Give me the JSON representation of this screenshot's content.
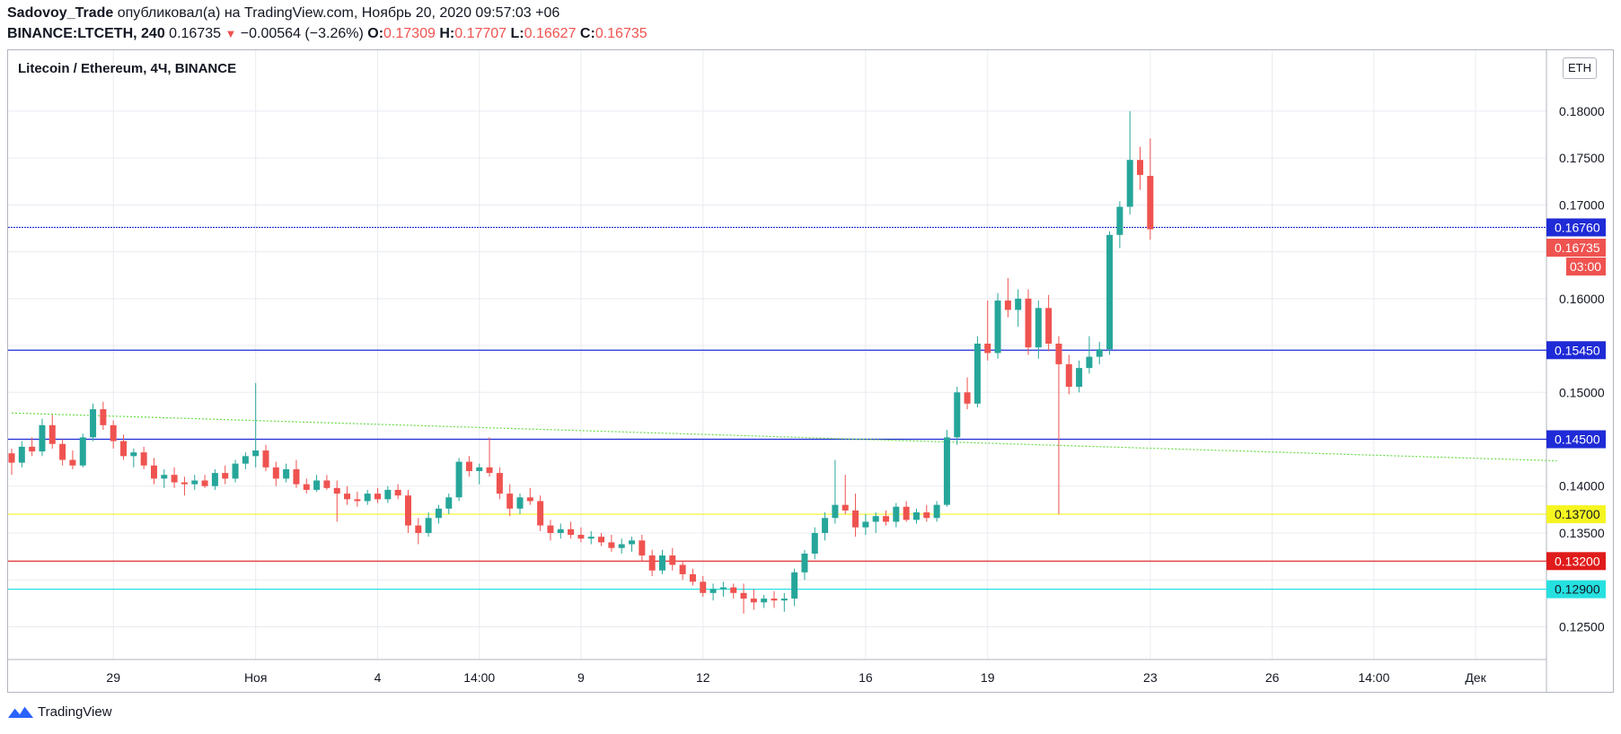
{
  "header": {
    "author": "Sadovoy_Trade",
    "published_text": "опубликовал(а) на TradingView.com, Ноябрь 20, 2020 09:57:03 +06",
    "symbol": "BINANCE:LTCETH, 240",
    "last": "0.16735",
    "change": "−0.00564 (−3.26%)",
    "o_label": "O:",
    "o_value": "0.17309",
    "h_label": "H:",
    "h_value": "0.17707",
    "l_label": "L:",
    "l_value": "0.16627",
    "c_label": "C:",
    "c_value": "0.16735"
  },
  "chart_title": "Litecoin / Ethereum, 4Ч, BINANCE",
  "currency_badge": "ETH",
  "footer": {
    "brand": "TradingView"
  },
  "colors": {
    "up": "#26a69a",
    "down": "#ef5350",
    "grid": "#e8ebf0",
    "blue": "#1f2bd6",
    "yellow": "#f5f521",
    "red": "#e01b1b",
    "cyan": "#26e0e0",
    "trend": "#66dd44"
  },
  "chart_data": {
    "type": "candlestick",
    "ylim": [
      0.1215,
      0.1865
    ],
    "y_ticks": [
      "0.12500",
      "0.13500",
      "0.14000",
      "0.15000",
      "0.16000",
      "0.17000",
      "0.17500",
      "0.18000"
    ],
    "x_labels": [
      {
        "label": "29",
        "i": 10
      },
      {
        "label": "Ноя",
        "i": 24
      },
      {
        "label": "4",
        "i": 36
      },
      {
        "label": "14:00",
        "i": 46
      },
      {
        "label": "9",
        "i": 56
      },
      {
        "label": "12",
        "i": 68
      },
      {
        "label": "16",
        "i": 84
      },
      {
        "label": "19",
        "i": 96
      },
      {
        "label": "23",
        "i": 112
      },
      {
        "label": "26",
        "i": 124
      },
      {
        "label": "14:00",
        "i": 134
      },
      {
        "label": "Дек",
        "i": 144
      }
    ],
    "horizontal_levels": [
      {
        "price": 0.1676,
        "label": "0.16760",
        "color": "#1f2bd6",
        "dotted": true
      },
      {
        "price": 0.1545,
        "label": "0.15450",
        "color": "#1f2bd6"
      },
      {
        "price": 0.145,
        "label": "0.14500",
        "color": "#1f2bd6"
      },
      {
        "price": 0.137,
        "label": "0.13700",
        "color": "#f5f521"
      },
      {
        "price": 0.132,
        "label": "0.13200",
        "color": "#e01b1b"
      },
      {
        "price": 0.129,
        "label": "0.12900",
        "color": "#26e0e0"
      }
    ],
    "last_price": {
      "label": "0.16735",
      "timer": "03:00",
      "price": 0.16735
    },
    "trendline": {
      "from": [
        0,
        0.1478
      ],
      "to": [
        152,
        0.1427
      ]
    },
    "candles": [
      [
        0.1435,
        0.144,
        0.1412,
        0.1425
      ],
      [
        0.1425,
        0.1448,
        0.142,
        0.1442
      ],
      [
        0.1442,
        0.1452,
        0.1432,
        0.1437
      ],
      [
        0.1437,
        0.1472,
        0.1432,
        0.1465
      ],
      [
        0.1465,
        0.1476,
        0.144,
        0.1445
      ],
      [
        0.1445,
        0.145,
        0.1422,
        0.1428
      ],
      [
        0.1428,
        0.1438,
        0.1418,
        0.1422
      ],
      [
        0.1422,
        0.1456,
        0.142,
        0.1452
      ],
      [
        0.1452,
        0.1488,
        0.1448,
        0.1482
      ],
      [
        0.1482,
        0.149,
        0.146,
        0.1465
      ],
      [
        0.1465,
        0.147,
        0.144,
        0.1448
      ],
      [
        0.1448,
        0.1455,
        0.1428,
        0.1432
      ],
      [
        0.1432,
        0.144,
        0.142,
        0.1436
      ],
      [
        0.1436,
        0.1442,
        0.1418,
        0.1422
      ],
      [
        0.1422,
        0.143,
        0.1402,
        0.1408
      ],
      [
        0.1408,
        0.1418,
        0.1398,
        0.1412
      ],
      [
        0.1412,
        0.142,
        0.1398,
        0.1404
      ],
      [
        0.1404,
        0.141,
        0.139,
        0.1402
      ],
      [
        0.1402,
        0.1412,
        0.1396,
        0.1406
      ],
      [
        0.1406,
        0.1412,
        0.1398,
        0.14
      ],
      [
        0.14,
        0.1418,
        0.1396,
        0.1414
      ],
      [
        0.1414,
        0.1422,
        0.1402,
        0.1408
      ],
      [
        0.1408,
        0.1428,
        0.1404,
        0.1424
      ],
      [
        0.1424,
        0.1436,
        0.1418,
        0.1432
      ],
      [
        0.1432,
        0.151,
        0.142,
        0.1438
      ],
      [
        0.1438,
        0.1444,
        0.1416,
        0.142
      ],
      [
        0.142,
        0.1426,
        0.14,
        0.1408
      ],
      [
        0.1408,
        0.1424,
        0.1404,
        0.1418
      ],
      [
        0.1418,
        0.1428,
        0.1398,
        0.1402
      ],
      [
        0.1402,
        0.1408,
        0.1392,
        0.1396
      ],
      [
        0.1396,
        0.1412,
        0.1394,
        0.1406
      ],
      [
        0.1406,
        0.1412,
        0.1396,
        0.1398
      ],
      [
        0.1398,
        0.1406,
        0.1362,
        0.1392
      ],
      [
        0.1392,
        0.14,
        0.138,
        0.1386
      ],
      [
        0.1386,
        0.1394,
        0.1378,
        0.1384
      ],
      [
        0.1384,
        0.1396,
        0.138,
        0.1392
      ],
      [
        0.1392,
        0.1398,
        0.1382,
        0.1386
      ],
      [
        0.1386,
        0.14,
        0.1382,
        0.1396
      ],
      [
        0.1396,
        0.1402,
        0.1386,
        0.139
      ],
      [
        0.139,
        0.1396,
        0.135,
        0.1358
      ],
      [
        0.1358,
        0.1366,
        0.1338,
        0.135
      ],
      [
        0.135,
        0.1372,
        0.1346,
        0.1366
      ],
      [
        0.1366,
        0.138,
        0.136,
        0.1376
      ],
      [
        0.1376,
        0.1392,
        0.137,
        0.1388
      ],
      [
        0.1388,
        0.143,
        0.1384,
        0.1426
      ],
      [
        0.1426,
        0.1432,
        0.141,
        0.1416
      ],
      [
        0.1416,
        0.1424,
        0.1402,
        0.142
      ],
      [
        0.142,
        0.1452,
        0.141,
        0.1414
      ],
      [
        0.1414,
        0.142,
        0.1386,
        0.1392
      ],
      [
        0.1392,
        0.1402,
        0.1368,
        0.1376
      ],
      [
        0.1376,
        0.1392,
        0.137,
        0.1388
      ],
      [
        0.1388,
        0.1398,
        0.138,
        0.1384
      ],
      [
        0.1384,
        0.139,
        0.1352,
        0.1358
      ],
      [
        0.1358,
        0.1364,
        0.1342,
        0.135
      ],
      [
        0.135,
        0.136,
        0.1344,
        0.1354
      ],
      [
        0.1354,
        0.1362,
        0.1344,
        0.1348
      ],
      [
        0.1348,
        0.1356,
        0.134,
        0.1344
      ],
      [
        0.1344,
        0.1352,
        0.1338,
        0.1346
      ],
      [
        0.1346,
        0.135,
        0.1336,
        0.134
      ],
      [
        0.134,
        0.1348,
        0.133,
        0.1334
      ],
      [
        0.1334,
        0.1344,
        0.1328,
        0.1338
      ],
      [
        0.1338,
        0.1346,
        0.133,
        0.1342
      ],
      [
        0.1342,
        0.1348,
        0.132,
        0.1326
      ],
      [
        0.1326,
        0.1332,
        0.1304,
        0.131
      ],
      [
        0.131,
        0.1332,
        0.1306,
        0.1326
      ],
      [
        0.1326,
        0.1334,
        0.131,
        0.1316
      ],
      [
        0.1316,
        0.132,
        0.13,
        0.1306
      ],
      [
        0.1306,
        0.1312,
        0.1294,
        0.1298
      ],
      [
        0.1298,
        0.1304,
        0.1282,
        0.1286
      ],
      [
        0.1286,
        0.1296,
        0.1278,
        0.129
      ],
      [
        0.129,
        0.1298,
        0.1282,
        0.1292
      ],
      [
        0.1292,
        0.1296,
        0.128,
        0.1286
      ],
      [
        0.1286,
        0.1296,
        0.1264,
        0.128
      ],
      [
        0.128,
        0.129,
        0.1268,
        0.1276
      ],
      [
        0.1276,
        0.1284,
        0.127,
        0.128
      ],
      [
        0.128,
        0.1288,
        0.127,
        0.1278
      ],
      [
        0.1278,
        0.1286,
        0.1266,
        0.128
      ],
      [
        0.128,
        0.1312,
        0.1272,
        0.1308
      ],
      [
        0.1308,
        0.1332,
        0.13,
        0.1328
      ],
      [
        0.1328,
        0.1356,
        0.1322,
        0.135
      ],
      [
        0.135,
        0.1372,
        0.1342,
        0.1366
      ],
      [
        0.1366,
        0.1428,
        0.136,
        0.138
      ],
      [
        0.138,
        0.1412,
        0.137,
        0.1374
      ],
      [
        0.1374,
        0.1392,
        0.1346,
        0.1356
      ],
      [
        0.1356,
        0.137,
        0.1348,
        0.1362
      ],
      [
        0.1362,
        0.1372,
        0.135,
        0.1368
      ],
      [
        0.1368,
        0.1374,
        0.1358,
        0.1362
      ],
      [
        0.1362,
        0.1382,
        0.1356,
        0.1378
      ],
      [
        0.1378,
        0.1384,
        0.1362,
        0.1364
      ],
      [
        0.1364,
        0.1376,
        0.136,
        0.1372
      ],
      [
        0.1372,
        0.138,
        0.1362,
        0.1366
      ],
      [
        0.1366,
        0.1384,
        0.1362,
        0.138
      ],
      [
        0.138,
        0.146,
        0.1378,
        0.1452
      ],
      [
        0.1452,
        0.1506,
        0.1444,
        0.15
      ],
      [
        0.15,
        0.1516,
        0.1482,
        0.1488
      ],
      [
        0.1488,
        0.156,
        0.1484,
        0.1552
      ],
      [
        0.1552,
        0.1598,
        0.1534,
        0.1542
      ],
      [
        0.1542,
        0.1606,
        0.1536,
        0.1598
      ],
      [
        0.1598,
        0.1622,
        0.158,
        0.1588
      ],
      [
        0.1588,
        0.161,
        0.157,
        0.16
      ],
      [
        0.16,
        0.161,
        0.154,
        0.1548
      ],
      [
        0.1548,
        0.1598,
        0.1536,
        0.159
      ],
      [
        0.159,
        0.1604,
        0.1544,
        0.1552
      ],
      [
        0.1552,
        0.156,
        0.137,
        0.153
      ],
      [
        0.153,
        0.154,
        0.1498,
        0.1506
      ],
      [
        0.1506,
        0.1534,
        0.15,
        0.1526
      ],
      [
        0.1526,
        0.156,
        0.152,
        0.1538
      ],
      [
        0.1538,
        0.1554,
        0.153,
        0.1546
      ],
      [
        0.1546,
        0.1672,
        0.154,
        0.1668
      ],
      [
        0.1668,
        0.1704,
        0.1654,
        0.1698
      ],
      [
        0.1698,
        0.18,
        0.169,
        0.1748
      ],
      [
        0.1748,
        0.1762,
        0.1716,
        0.1732
      ],
      [
        0.1731,
        0.1771,
        0.1663,
        0.1674
      ]
    ]
  }
}
